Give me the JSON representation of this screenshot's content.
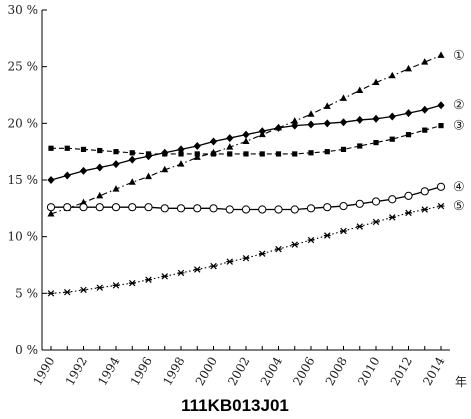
{
  "chart_data": {
    "type": "line",
    "x": [
      1990,
      1991,
      1992,
      1993,
      1994,
      1995,
      1996,
      1997,
      1998,
      1999,
      2000,
      2001,
      2002,
      2003,
      2004,
      2005,
      2006,
      2007,
      2008,
      2009,
      2010,
      2011,
      2012,
      2013,
      2014
    ],
    "x_ticks": [
      "1990",
      "1992",
      "1994",
      "1996",
      "1998",
      "2000",
      "2002",
      "2004",
      "2006",
      "2008",
      "2010",
      "2012",
      "2014"
    ],
    "x_unit": "年",
    "y_ticks": [
      "0 %",
      "5 %",
      "10 %",
      "15 %",
      "20 %",
      "25 %",
      "30 %"
    ],
    "ylim": [
      0,
      30
    ],
    "xlim": [
      1990,
      2014
    ],
    "grid": false,
    "series": [
      {
        "label": "①",
        "marker": "triangle",
        "line": "dashdot",
        "color": "#000000",
        "values": [
          12.0,
          12.5,
          13.0,
          13.6,
          14.2,
          14.8,
          15.3,
          15.9,
          16.4,
          17.0,
          17.4,
          17.9,
          18.4,
          19.0,
          19.6,
          20.2,
          20.8,
          21.5,
          22.2,
          22.9,
          23.6,
          24.2,
          24.8,
          25.4,
          26.0
        ]
      },
      {
        "label": "②",
        "marker": "diamond",
        "line": "solid",
        "color": "#000000",
        "values": [
          15.0,
          15.4,
          15.8,
          16.1,
          16.4,
          16.8,
          17.1,
          17.4,
          17.7,
          18.0,
          18.4,
          18.7,
          19.0,
          19.3,
          19.6,
          19.8,
          19.9,
          20.0,
          20.1,
          20.3,
          20.4,
          20.6,
          20.9,
          21.2,
          21.6
        ]
      },
      {
        "label": "③",
        "marker": "square",
        "line": "dashed",
        "color": "#000000",
        "values": [
          17.8,
          17.8,
          17.7,
          17.6,
          17.5,
          17.4,
          17.3,
          17.3,
          17.3,
          17.3,
          17.3,
          17.3,
          17.3,
          17.3,
          17.3,
          17.3,
          17.4,
          17.5,
          17.7,
          18.0,
          18.3,
          18.6,
          19.0,
          19.4,
          19.8
        ]
      },
      {
        "label": "④",
        "marker": "circle-open",
        "line": "solid",
        "color": "#000000",
        "values": [
          12.6,
          12.6,
          12.6,
          12.6,
          12.6,
          12.6,
          12.6,
          12.5,
          12.5,
          12.5,
          12.5,
          12.4,
          12.4,
          12.4,
          12.4,
          12.4,
          12.5,
          12.6,
          12.7,
          12.9,
          13.1,
          13.3,
          13.6,
          14.0,
          14.4
        ]
      },
      {
        "label": "⑤",
        "marker": "asterisk",
        "line": "dotted",
        "color": "#000000",
        "values": [
          5.0,
          5.1,
          5.3,
          5.5,
          5.7,
          5.9,
          6.2,
          6.5,
          6.8,
          7.1,
          7.4,
          7.8,
          8.1,
          8.5,
          8.9,
          9.3,
          9.7,
          10.1,
          10.5,
          10.9,
          11.3,
          11.7,
          12.1,
          12.4,
          12.7
        ]
      }
    ]
  },
  "caption": "111KB013J01"
}
